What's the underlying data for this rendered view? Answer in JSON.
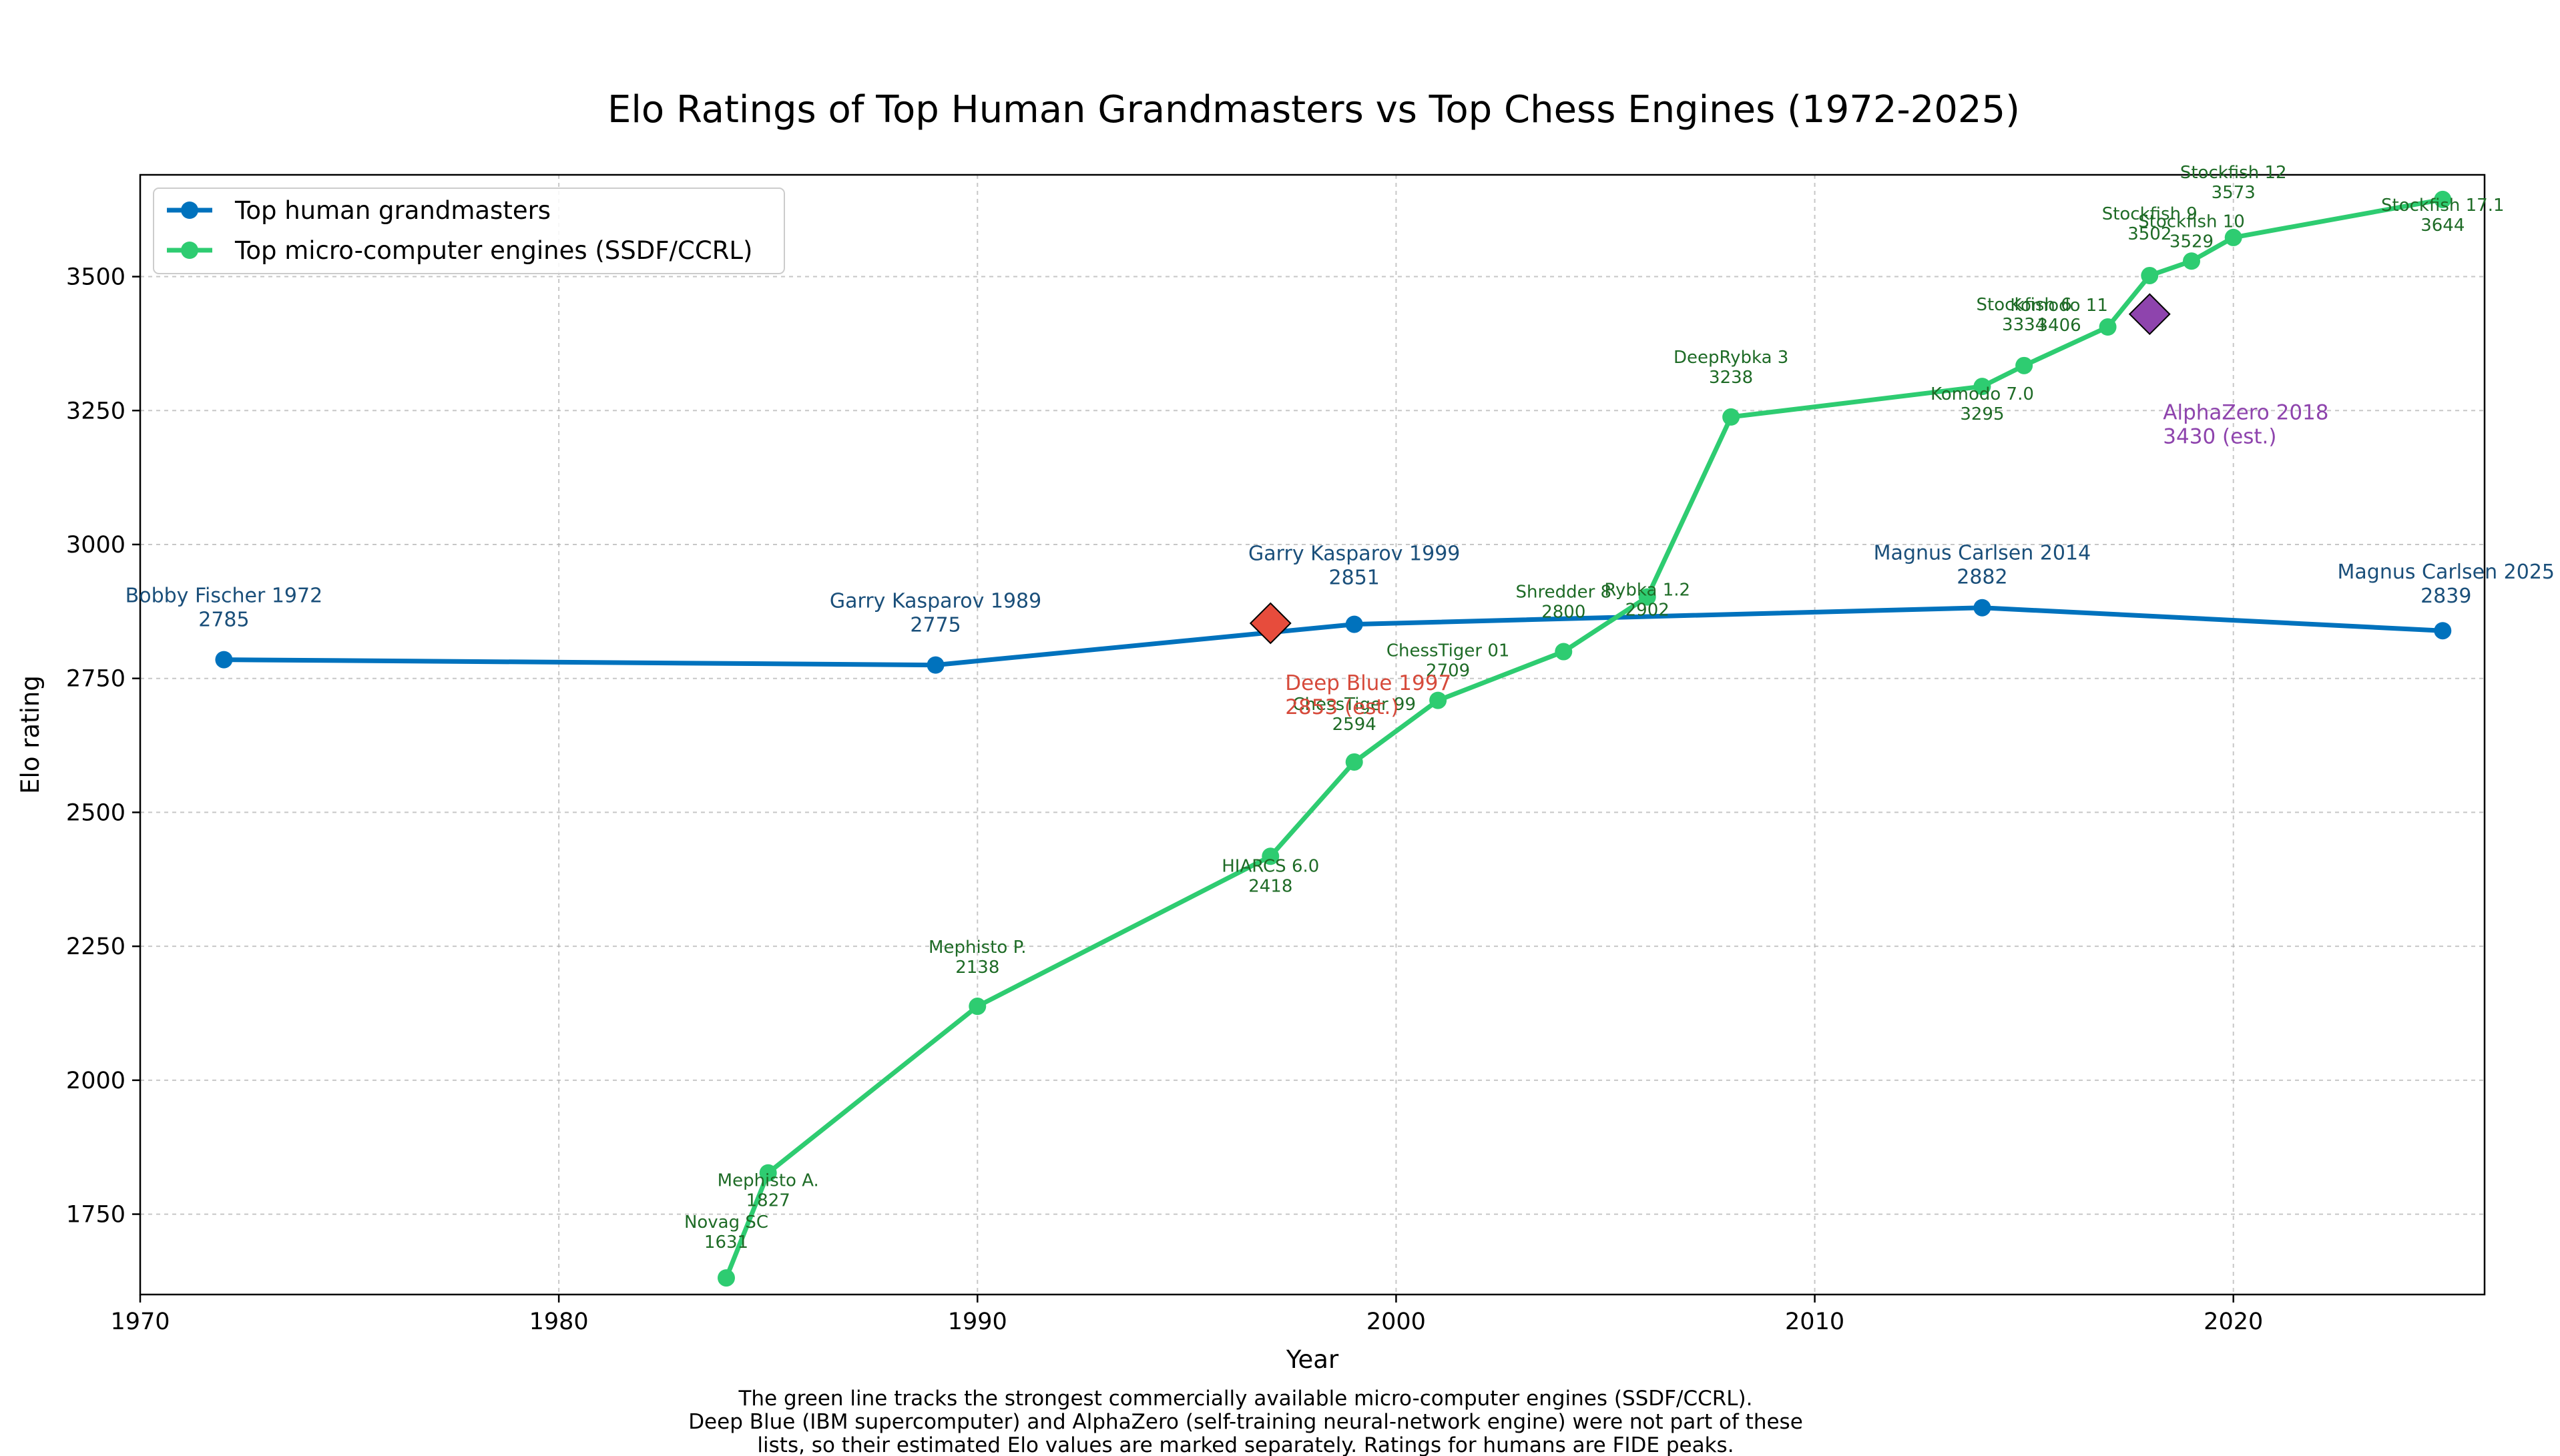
{
  "chart_data": {
    "type": "line",
    "title": "Elo Ratings of Top Human Grandmasters vs Top Chess Engines (1972-2025)",
    "xlabel": "Year",
    "ylabel": "Elo rating",
    "xlim": [
      1970,
      2026
    ],
    "ylim": [
      1600,
      3690
    ],
    "x_ticks": [
      1970,
      1980,
      1990,
      2000,
      2010,
      2020
    ],
    "y_ticks": [
      1750,
      2000,
      2250,
      2500,
      2750,
      3000,
      3250,
      3500
    ],
    "grid": true,
    "legend_position": "top-left",
    "series": [
      {
        "name": "Top human grandmasters",
        "color": "#0072bd",
        "points": [
          {
            "x": 1972,
            "y": 2785,
            "label": "Bobby Fischer 1972",
            "value_label": "2785"
          },
          {
            "x": 1989,
            "y": 2775,
            "label": "Garry Kasparov 1989",
            "value_label": "2775"
          },
          {
            "x": 1999,
            "y": 2851,
            "label": "Garry Kasparov 1999",
            "value_label": "2851"
          },
          {
            "x": 2014,
            "y": 2882,
            "label": "Magnus Carlsen 2014",
            "value_label": "2882"
          },
          {
            "x": 2025,
            "y": 2839,
            "label": "Magnus Carlsen 2025",
            "value_label": "2839"
          }
        ]
      },
      {
        "name": "Top micro-computer engines (SSDF/CCRL)",
        "color": "#2ecc71",
        "points": [
          {
            "x": 1984,
            "y": 1631,
            "label": "Novag SC",
            "value_label": "1631"
          },
          {
            "x": 1985,
            "y": 1827,
            "label": "Mephisto A.",
            "value_label": "1827"
          },
          {
            "x": 1990,
            "y": 2138,
            "label": "Mephisto P.",
            "value_label": "2138"
          },
          {
            "x": 1997,
            "y": 2418,
            "label": "HIARCS 6.0",
            "value_label": "2418"
          },
          {
            "x": 1999,
            "y": 2594,
            "label": "ChessTiger 99",
            "value_label": "2594"
          },
          {
            "x": 2001,
            "y": 2709,
            "label": "ChessTiger 01",
            "value_label": "2709"
          },
          {
            "x": 2004,
            "y": 2800,
            "label": "Shredder 8",
            "value_label": "2800"
          },
          {
            "x": 2006,
            "y": 2902,
            "label": "Rybka 1.2",
            "value_label": "2902"
          },
          {
            "x": 2008,
            "y": 3238,
            "label": "DeepRybka 3",
            "value_label": "3238"
          },
          {
            "x": 2014,
            "y": 3295,
            "label": "Komodo 7.0",
            "value_label": "3295"
          },
          {
            "x": 2015,
            "y": 3334,
            "label": "Stockfish 6",
            "value_label": "3334"
          },
          {
            "x": 2017,
            "y": 3406,
            "label": "Komodo 11",
            "value_label": "3406"
          },
          {
            "x": 2018,
            "y": 3502,
            "label": "Stockfish 9",
            "value_label": "3502"
          },
          {
            "x": 2019,
            "y": 3529,
            "label": "Stockfish 10",
            "value_label": "3529"
          },
          {
            "x": 2020,
            "y": 3573,
            "label": "Stockfish 12",
            "value_label": "3573"
          },
          {
            "x": 2025,
            "y": 3644,
            "label": "Stockfish 17.1",
            "value_label": "3644"
          }
        ]
      }
    ],
    "special_points": [
      {
        "x": 1997,
        "y": 2853,
        "label": "Deep Blue 1997",
        "value_label": "2853 (est.)",
        "color": "#e74c3c",
        "marker": "diamond"
      },
      {
        "x": 2018,
        "y": 3430,
        "label": "AlphaZero 2018",
        "value_label": "3430 (est.)",
        "color": "#8e44ad",
        "marker": "diamond"
      }
    ],
    "footnote": [
      "The green line tracks the strongest commercially available micro-computer engines (SSDF/CCRL).",
      "Deep Blue (IBM supercomputer) and AlphaZero (self-training neural-network engine) were not part of these",
      "lists, so their estimated Elo values are marked separately. Ratings for humans are FIDE peaks."
    ]
  }
}
